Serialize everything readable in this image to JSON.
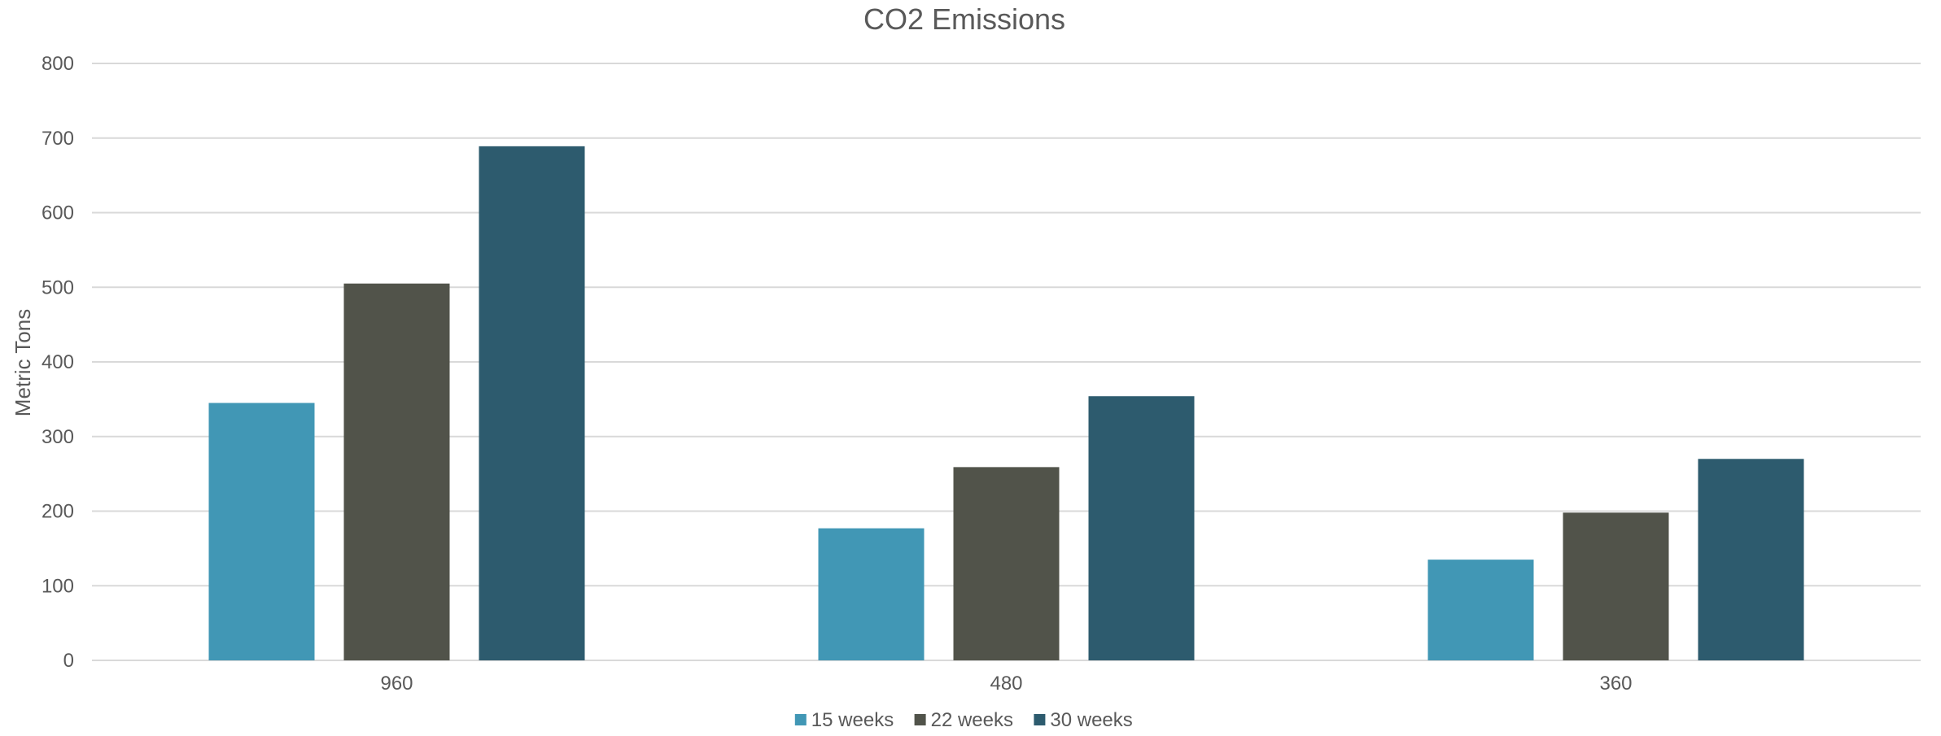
{
  "chart_data": {
    "type": "bar",
    "title": "CO2 Emissions",
    "xlabel": "",
    "ylabel": "Metric Tons",
    "categories": [
      "960",
      "480",
      "360"
    ],
    "series": [
      {
        "name": "15 weeks",
        "color": "#4197b5",
        "values": [
          345,
          177,
          135
        ]
      },
      {
        "name": "22 weeks",
        "color": "#51534a",
        "values": [
          505,
          259,
          198
        ]
      },
      {
        "name": "30 weeks",
        "color": "#2d5b6e",
        "values": [
          689,
          354,
          270
        ]
      }
    ],
    "ylim": [
      0,
      800
    ],
    "yticks": [
      0,
      100,
      200,
      300,
      400,
      500,
      600,
      700,
      800
    ],
    "grid": true,
    "legend_position": "bottom"
  }
}
